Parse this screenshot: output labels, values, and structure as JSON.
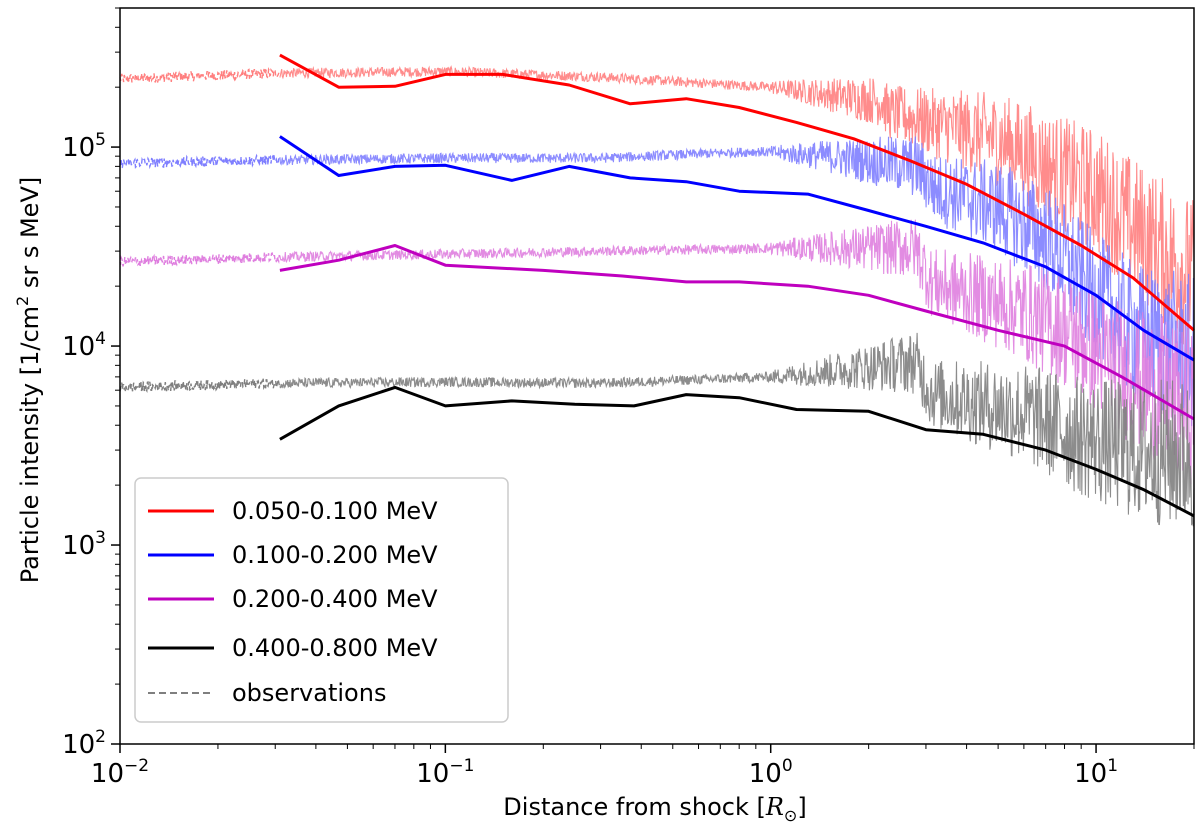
{
  "chart_data": {
    "type": "line",
    "x_scale": "log",
    "y_scale": "log",
    "xlim": [
      0.01,
      20
    ],
    "ylim": [
      100,
      500000
    ],
    "xlabel_main": "Distance from shock [",
    "xlabel_symbol": "R",
    "xlabel_sub": "⊙",
    "xlabel_end": "]",
    "ylabel_main": "Particle intensity [1/cm",
    "ylabel_sup": "2",
    "ylabel_end": " sr s MeV]",
    "x_ticks": [
      {
        "value": 0.01,
        "base": "10",
        "exp": "−2"
      },
      {
        "value": 0.1,
        "base": "10",
        "exp": "−1"
      },
      {
        "value": 1,
        "base": "10",
        "exp": "0"
      },
      {
        "value": 10,
        "base": "10",
        "exp": "1"
      }
    ],
    "y_ticks": [
      {
        "value": 100,
        "base": "10",
        "exp": "2"
      },
      {
        "value": 1000,
        "base": "10",
        "exp": "3"
      },
      {
        "value": 10000,
        "base": "10",
        "exp": "4"
      },
      {
        "value": 100000,
        "base": "10",
        "exp": "5"
      }
    ],
    "legend_position": "lower-left",
    "series": [
      {
        "name": "0.050-0.100 MeV",
        "color": "#ff0000",
        "obs_color": "#ff7f7f",
        "obs_level": [
          [
            0.01,
            220000
          ],
          [
            0.03,
            235000
          ],
          [
            0.1,
            240000
          ],
          [
            0.3,
            225000
          ],
          [
            1,
            200000
          ],
          [
            2.2,
            170000
          ],
          [
            2.3,
            150000
          ],
          [
            5,
            110000
          ],
          [
            10,
            60000
          ],
          [
            13,
            40000
          ],
          [
            20,
            22000
          ]
        ],
        "model": [
          [
            0.031,
            290000
          ],
          [
            0.047,
            200000
          ],
          [
            0.07,
            202000
          ],
          [
            0.1,
            232000
          ],
          [
            0.15,
            232000
          ],
          [
            0.24,
            205000
          ],
          [
            0.37,
            165000
          ],
          [
            0.55,
            175000
          ],
          [
            0.8,
            158000
          ],
          [
            1.2,
            133000
          ],
          [
            1.8,
            110000
          ],
          [
            2.7,
            85000
          ],
          [
            4,
            65000
          ],
          [
            6,
            46000
          ],
          [
            9,
            32000
          ],
          [
            13,
            22000
          ],
          [
            20,
            12000
          ]
        ]
      },
      {
        "name": "0.100-0.200 MeV",
        "color": "#0000ff",
        "obs_color": "#7f7fff",
        "obs_level": [
          [
            0.01,
            83000
          ],
          [
            0.03,
            86000
          ],
          [
            0.1,
            88000
          ],
          [
            0.3,
            88000
          ],
          [
            0.9,
            95000
          ],
          [
            1.5,
            90000
          ],
          [
            2.8,
            80000
          ],
          [
            3.2,
            62000
          ],
          [
            5,
            50000
          ],
          [
            7,
            35000
          ],
          [
            10,
            18000
          ],
          [
            13,
            12000
          ],
          [
            20,
            9000
          ]
        ],
        "model": [
          [
            0.031,
            113000
          ],
          [
            0.047,
            72000
          ],
          [
            0.07,
            80000
          ],
          [
            0.1,
            81000
          ],
          [
            0.16,
            68000
          ],
          [
            0.24,
            80000
          ],
          [
            0.37,
            70000
          ],
          [
            0.55,
            67000
          ],
          [
            0.8,
            60000
          ],
          [
            1.3,
            58000
          ],
          [
            2,
            48000
          ],
          [
            3,
            40000
          ],
          [
            4.5,
            33000
          ],
          [
            7,
            25000
          ],
          [
            10,
            18000
          ],
          [
            14,
            12000
          ],
          [
            20,
            8500
          ]
        ]
      },
      {
        "name": "0.200-0.400 MeV",
        "color": "#bf00bf",
        "obs_color": "#df7fdf",
        "obs_level": [
          [
            0.01,
            26500
          ],
          [
            0.03,
            28000
          ],
          [
            0.1,
            29000
          ],
          [
            0.3,
            30000
          ],
          [
            1,
            31000
          ],
          [
            2.8,
            31000
          ],
          [
            3.1,
            21000
          ],
          [
            6,
            15000
          ],
          [
            8,
            12000
          ],
          [
            10,
            9500
          ],
          [
            13,
            7000
          ],
          [
            20,
            5000
          ]
        ],
        "model": [
          [
            0.031,
            24000
          ],
          [
            0.047,
            27000
          ],
          [
            0.07,
            32000
          ],
          [
            0.1,
            25500
          ],
          [
            0.2,
            24000
          ],
          [
            0.35,
            22500
          ],
          [
            0.55,
            21000
          ],
          [
            0.8,
            21000
          ],
          [
            1.3,
            20000
          ],
          [
            2,
            18000
          ],
          [
            3,
            15000
          ],
          [
            5,
            12000
          ],
          [
            8,
            10000
          ],
          [
            12,
            7000
          ],
          [
            20,
            4300
          ]
        ]
      },
      {
        "name": "0.400-0.800 MeV",
        "color": "#000000",
        "obs_color": "#7f7f7f",
        "obs_level": [
          [
            0.01,
            6200
          ],
          [
            0.03,
            6500
          ],
          [
            0.1,
            6600
          ],
          [
            0.3,
            6500
          ],
          [
            1,
            7000
          ],
          [
            2.8,
            8300
          ],
          [
            3.1,
            5800
          ],
          [
            6,
            4600
          ],
          [
            9,
            3500
          ],
          [
            13,
            3000
          ],
          [
            20,
            2800
          ]
        ],
        "model": [
          [
            0.031,
            3400
          ],
          [
            0.047,
            5000
          ],
          [
            0.07,
            6200
          ],
          [
            0.1,
            5000
          ],
          [
            0.16,
            5300
          ],
          [
            0.25,
            5100
          ],
          [
            0.38,
            5000
          ],
          [
            0.55,
            5700
          ],
          [
            0.8,
            5500
          ],
          [
            1.2,
            4800
          ],
          [
            2,
            4700
          ],
          [
            3,
            3800
          ],
          [
            4.5,
            3600
          ],
          [
            7,
            3000
          ],
          [
            10,
            2400
          ],
          [
            14,
            1900
          ],
          [
            20,
            1400
          ]
        ]
      }
    ],
    "observations_label": "observations",
    "observations_color": "#7f7f7f"
  }
}
